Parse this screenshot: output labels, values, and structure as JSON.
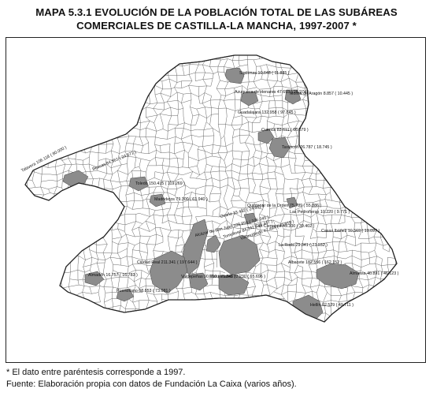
{
  "header": {
    "title_line1": "MAPA 5.3.1 EVOLUCIÓN DE LA POBLACIÓN TOTAL DE LAS SUBÁREAS",
    "title_line2": "COMERCIALES DE CASTILLA-LA MANCHA, 1997-2007 *"
  },
  "map": {
    "colors": {
      "subarea_fill": "#8c8c8c",
      "border": "#555555",
      "background": "#ffffff"
    },
    "labels": [
      "Sigüenza 10.648 ( 11.885 )",
      "Molina de Aragón 8.857 ( 10.445 )",
      "Azuqueca de Henares 47.693 ( 26.974 )",
      "Guadalajara 132.958 ( 97.845 )",
      "Talavera 106.118 ( 80.000 )",
      "Illescas 84.561 ( 24.671 )",
      "Toledo 150.415 ( 119.269 )",
      "Madridejos 79.300 ( 61.940 )",
      "Cuenca 83.611 ( 66.879 )",
      "Tarancón 26.787 ( 18.745 )",
      "Quintanar de la Orden 75.789 ( 55.886 )",
      "Las Pedroñeras 10.220 ( 9.771 )",
      "San Clemente 49.300 ( 39.402 )",
      "Ocaña 33.432 ( 24.911 )",
      "Alcázar de San Juan 108.856 ( 106.045 )",
      "Tomelloso 84.342 ( 79.447 )",
      "Villarrobledo 47.494 ( 43.919 )",
      "La Roda 29.341 ( 23.932 )",
      "Casas Ibáñez 10.569 ( 10.097 )",
      "Albacete 182.556 ( 162.152 )",
      "Almansa 40.891 ( 46.123 )",
      "Ciudad Real 211.341 ( 197.644 )",
      "Almadén 16.757 ( 16.783 )",
      "Puertollano 68.853 ( 73.081 )",
      "Valdepeñas 90.000 ( 71.345 )",
      "Manzanares 72.230 ( 65.696 )",
      "Hellín 62.529 ( 49.711 )"
    ]
  },
  "notes": {
    "line1": "* El dato entre paréntesis corresponde a 1997.",
    "line2": "Fuente: Elaboración propia con datos de Fundación La Caixa (varios años)."
  }
}
